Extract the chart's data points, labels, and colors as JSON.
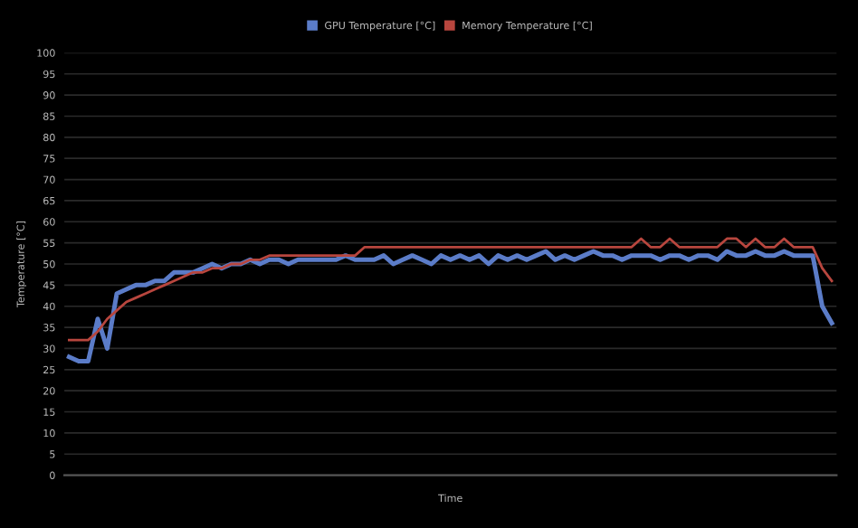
{
  "chart_data": {
    "type": "line",
    "xlabel": "Time",
    "ylabel": "Temperature [°C]",
    "categories": [
      null,
      null,
      null,
      null,
      null,
      null,
      null,
      null,
      null,
      null,
      null,
      null,
      null,
      null,
      null,
      null,
      null,
      null,
      null,
      null,
      null,
      null,
      null,
      null,
      null,
      null,
      null,
      null,
      null,
      null,
      null,
      null,
      null,
      null,
      null,
      null,
      null,
      null,
      null,
      null,
      null,
      null,
      null,
      null,
      null,
      null,
      null,
      null,
      null,
      null,
      null,
      null,
      null,
      null,
      null,
      null,
      null,
      null,
      null,
      null,
      null,
      null,
      null,
      null,
      null,
      null,
      null,
      null,
      null,
      null,
      null,
      null,
      null,
      null,
      null,
      null,
      null,
      null,
      null,
      null,
      null
    ],
    "series": [
      {
        "name": "GPU Temperature [°C]",
        "color": "#5b7cc8",
        "values": [
          28,
          27,
          27,
          37,
          30,
          43,
          44,
          45,
          45,
          46,
          46,
          48,
          48,
          48,
          49,
          50,
          49,
          50,
          50,
          51,
          50,
          51,
          51,
          50,
          51,
          51,
          51,
          51,
          51,
          52,
          51,
          51,
          51,
          52,
          50,
          51,
          52,
          51,
          50,
          52,
          51,
          52,
          51,
          52,
          50,
          52,
          51,
          52,
          51,
          52,
          53,
          51,
          52,
          51,
          52,
          53,
          52,
          52,
          51,
          52,
          52,
          52,
          51,
          52,
          52,
          51,
          52,
          52,
          51,
          53,
          52,
          52,
          53,
          52,
          52,
          53,
          52,
          52,
          52,
          40,
          36
        ]
      },
      {
        "name": "Memory Temperature [°C]",
        "color": "#b8463e",
        "values": [
          32,
          32,
          32,
          34,
          37,
          39,
          41,
          42,
          43,
          44,
          45,
          46,
          47,
          48,
          48,
          49,
          49,
          50,
          50,
          51,
          51,
          52,
          52,
          52,
          52,
          52,
          52,
          52,
          52,
          52,
          52,
          54,
          54,
          54,
          54,
          54,
          54,
          54,
          54,
          54,
          54,
          54,
          54,
          54,
          54,
          54,
          54,
          54,
          54,
          54,
          54,
          54,
          54,
          54,
          54,
          54,
          54,
          54,
          54,
          54,
          56,
          54,
          54,
          56,
          54,
          54,
          54,
          54,
          54,
          56,
          56,
          54,
          56,
          54,
          54,
          56,
          54,
          54,
          54,
          49,
          46
        ]
      }
    ],
    "ylim": [
      0,
      100
    ],
    "yticks": [
      0,
      5,
      10,
      15,
      20,
      25,
      30,
      35,
      40,
      45,
      50,
      55,
      60,
      65,
      70,
      75,
      80,
      85,
      90,
      95,
      100
    ],
    "grid": "y",
    "legend": "top",
    "marker": "none",
    "line_style": "solid"
  }
}
